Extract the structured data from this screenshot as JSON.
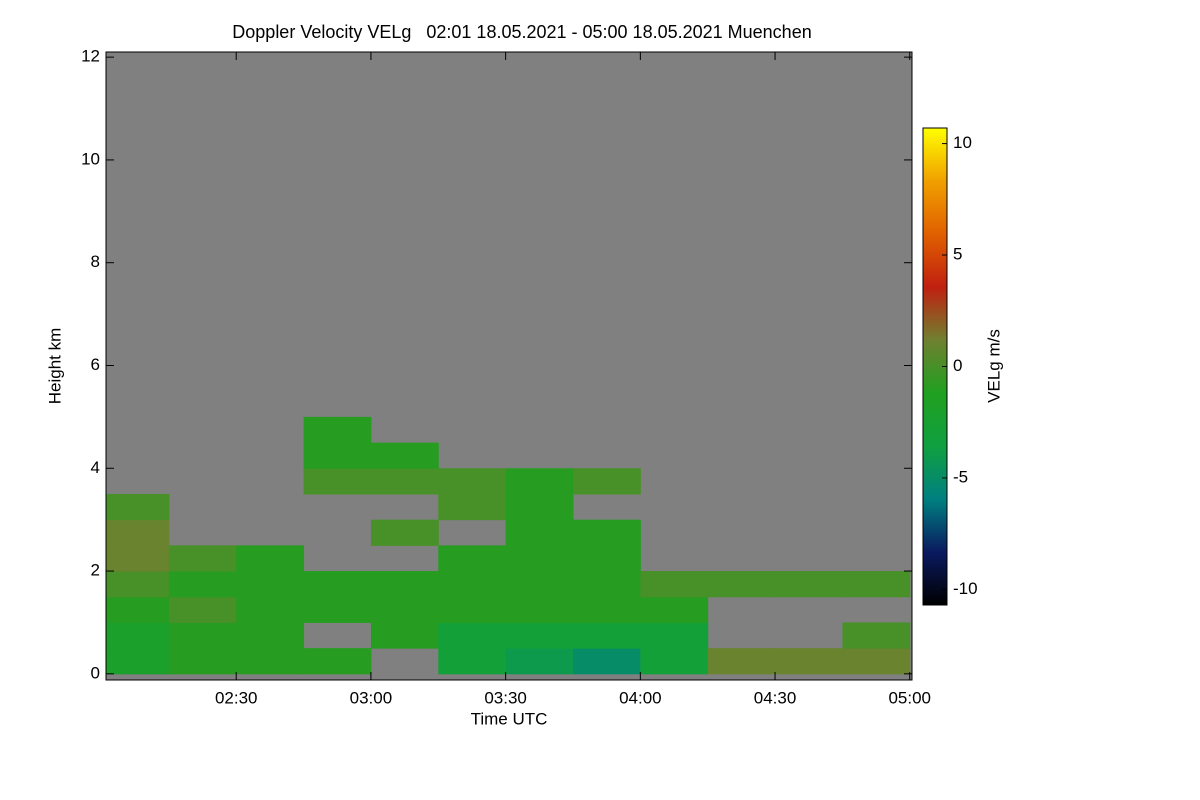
{
  "chart_data": {
    "type": "heatmap",
    "title": "Doppler Velocity VELg   02:01 18.05.2021 - 05:00 18.05.2021 Muenchen",
    "x_label": "Time UTC",
    "y_label": "Height km",
    "colorbar_label": "VELg m/s",
    "xlim": [
      121,
      300.5
    ],
    "xticks": [
      {
        "value": 150,
        "label": "02:30"
      },
      {
        "value": 180,
        "label": "03:00"
      },
      {
        "value": 210,
        "label": "03:30"
      },
      {
        "value": 240,
        "label": "04:00"
      },
      {
        "value": 270,
        "label": "04:30"
      },
      {
        "value": 300,
        "label": "05:00"
      }
    ],
    "ylim": [
      -0.12,
      12.1
    ],
    "yticks": [
      0,
      2,
      4,
      6,
      8,
      10,
      12
    ],
    "zlim": [
      -10.7,
      10.7
    ],
    "zticks": [
      -10,
      -5,
      0,
      5,
      10
    ],
    "x_bins": [
      121,
      135,
      150,
      165,
      180,
      195,
      210,
      225,
      240,
      255,
      270,
      285,
      300
    ],
    "y_bins": [
      0,
      0.5,
      1,
      1.5,
      2,
      2.5,
      3,
      3.5,
      4,
      4.5,
      5
    ],
    "z": [
      [
        -2,
        -1,
        -1,
        -1,
        null,
        -3,
        -4,
        -5,
        -3,
        1,
        1,
        1
      ],
      [
        -2,
        -1,
        -1,
        null,
        -1,
        -3,
        -3,
        -3,
        -3,
        null,
        null,
        0
      ],
      [
        -1,
        0,
        -1,
        -1,
        -1,
        -1,
        -1,
        -1,
        -1,
        null,
        null,
        null
      ],
      [
        0,
        -1,
        -1,
        -1,
        -1,
        -1,
        -1,
        -1,
        0,
        0,
        0,
        0
      ],
      [
        1,
        0,
        -1,
        null,
        null,
        -1,
        -1,
        -1,
        null,
        null,
        null,
        null
      ],
      [
        1,
        null,
        null,
        null,
        0,
        null,
        -1,
        -1,
        null,
        null,
        null,
        null
      ],
      [
        0,
        null,
        null,
        null,
        null,
        0,
        -1,
        null,
        null,
        null,
        null,
        null
      ],
      [
        null,
        null,
        null,
        0,
        0,
        0,
        -1,
        0,
        null,
        null,
        null,
        null
      ],
      [
        null,
        null,
        null,
        -1,
        -1,
        null,
        null,
        null,
        null,
        null,
        null,
        null
      ],
      [
        null,
        null,
        null,
        -1,
        null,
        null,
        null,
        null,
        null,
        null,
        null,
        null
      ]
    ],
    "missing_color": "#808080",
    "colormap": [
      "#000000",
      "#0a1a60",
      "#008080",
      "#10a040",
      "#20a020",
      "#708030",
      "#c02010",
      "#e06000",
      "#f0a000",
      "#ffff00"
    ]
  }
}
